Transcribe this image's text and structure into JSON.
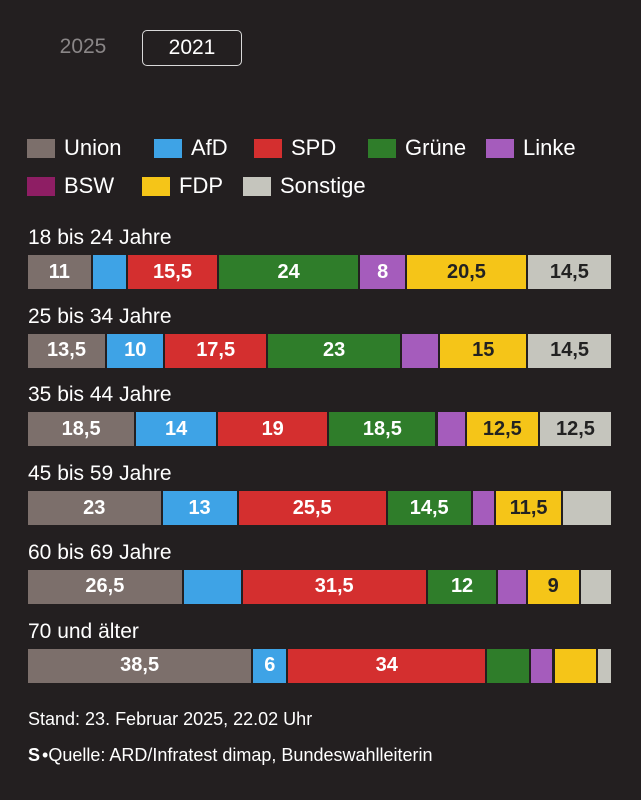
{
  "tabs": {
    "y2025": "2025",
    "y2021": "2021",
    "selected": "2021"
  },
  "footer": {
    "date": "Stand: 23. Februar 2025, 22.02 Uhr",
    "logo": "S",
    "source": "•Quelle: ARD/Infratest dimap, Bundeswahlleiterin"
  },
  "chart_data": {
    "type": "bar",
    "stacked": true,
    "orientation": "horizontal",
    "unit": "percent",
    "legend_placement": "top",
    "categories": [
      "18 bis 24 Jahre",
      "25 bis 34 Jahre",
      "35 bis 44 Jahre",
      "45 bis 59 Jahre",
      "60 bis 69 Jahre",
      "70 und älter"
    ],
    "series": [
      {
        "name": "Union",
        "color": "#7c6f6b",
        "values": [
          11,
          13.5,
          18.5,
          23,
          26.5,
          38.5
        ],
        "labels": [
          "11",
          "13,5",
          "18,5",
          "23",
          "26,5",
          "38,5"
        ]
      },
      {
        "name": "AfD",
        "color": "#3ea3e6",
        "values": [
          6,
          10,
          14,
          13,
          10,
          6
        ],
        "labels": [
          "",
          "10",
          "14",
          "13",
          "",
          "6"
        ]
      },
      {
        "name": "SPD",
        "color": "#d42f2f",
        "values": [
          15.5,
          17.5,
          19,
          25.5,
          31.5,
          34
        ],
        "labels": [
          "15,5",
          "17,5",
          "19",
          "25,5",
          "31,5",
          "34"
        ]
      },
      {
        "name": "Grüne",
        "color": "#2f7d2a",
        "values": [
          24,
          23,
          18.5,
          14.5,
          12,
          7.5
        ],
        "labels": [
          "24",
          "23",
          "18,5",
          "14,5",
          "12",
          ""
        ]
      },
      {
        "name": "Linke",
        "color": "#a55cbc",
        "values": [
          8,
          6.5,
          5,
          4,
          5,
          4
        ],
        "labels": [
          "8",
          "",
          "",
          "",
          "",
          ""
        ]
      },
      {
        "name": "BSW",
        "color": "#8e1e64",
        "values": [
          0,
          0,
          0,
          0,
          0,
          0
        ],
        "labels": [
          "",
          "",
          "",
          "",
          "",
          ""
        ]
      },
      {
        "name": "FDP",
        "color": "#f5c518",
        "values": [
          20.5,
          15,
          12.5,
          11.5,
          9,
          7.5
        ],
        "labels": [
          "20,5",
          "15",
          "12,5",
          "11,5",
          "9",
          ""
        ]
      },
      {
        "name": "Sonstige",
        "color": "#c5c5bd",
        "values": [
          14.5,
          14.5,
          12.5,
          8.5,
          5.5,
          2.5
        ],
        "labels": [
          "14,5",
          "14,5",
          "12,5",
          "",
          "",
          ""
        ]
      }
    ]
  }
}
